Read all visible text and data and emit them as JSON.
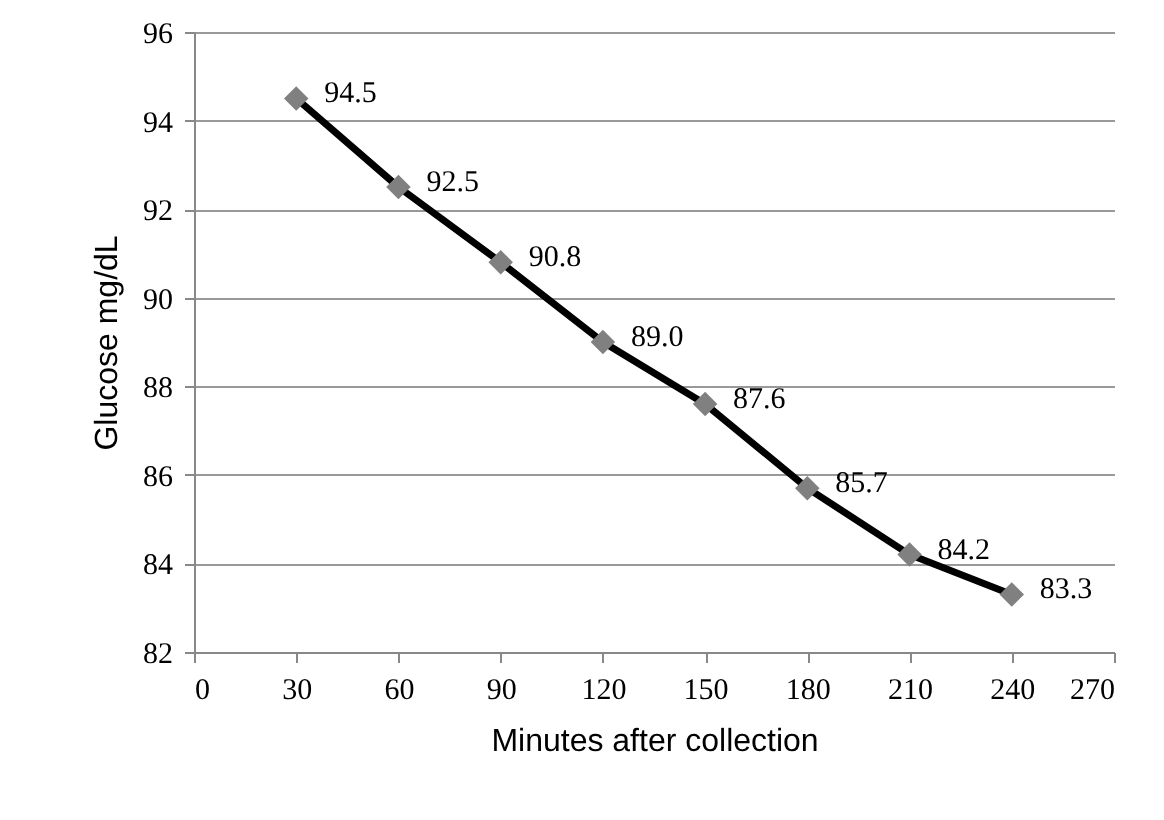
{
  "chart_data": {
    "type": "line",
    "xlabel": "Minutes after collection",
    "ylabel": "Glucose mg/dL",
    "x": [
      30,
      60,
      90,
      120,
      150,
      180,
      210,
      240
    ],
    "series": [
      {
        "color": "#000000",
        "values": [
          94.5,
          92.5,
          90.8,
          89.0,
          87.6,
          85.7,
          84.2,
          83.3
        ],
        "value_labels": [
          "94.5",
          "92.5",
          "90.8",
          "89.0",
          "87.6",
          "85.7",
          "84.2",
          "83.3"
        ]
      }
    ],
    "xlim": [
      0,
      270
    ],
    "xticks": [
      0,
      30,
      60,
      90,
      120,
      150,
      180,
      210,
      240,
      270
    ],
    "ylim": [
      82,
      96
    ],
    "yticks": [
      82,
      84,
      86,
      88,
      90,
      92,
      94,
      96
    ],
    "grid": "y",
    "marker": "diamond",
    "line_style": "solid"
  }
}
